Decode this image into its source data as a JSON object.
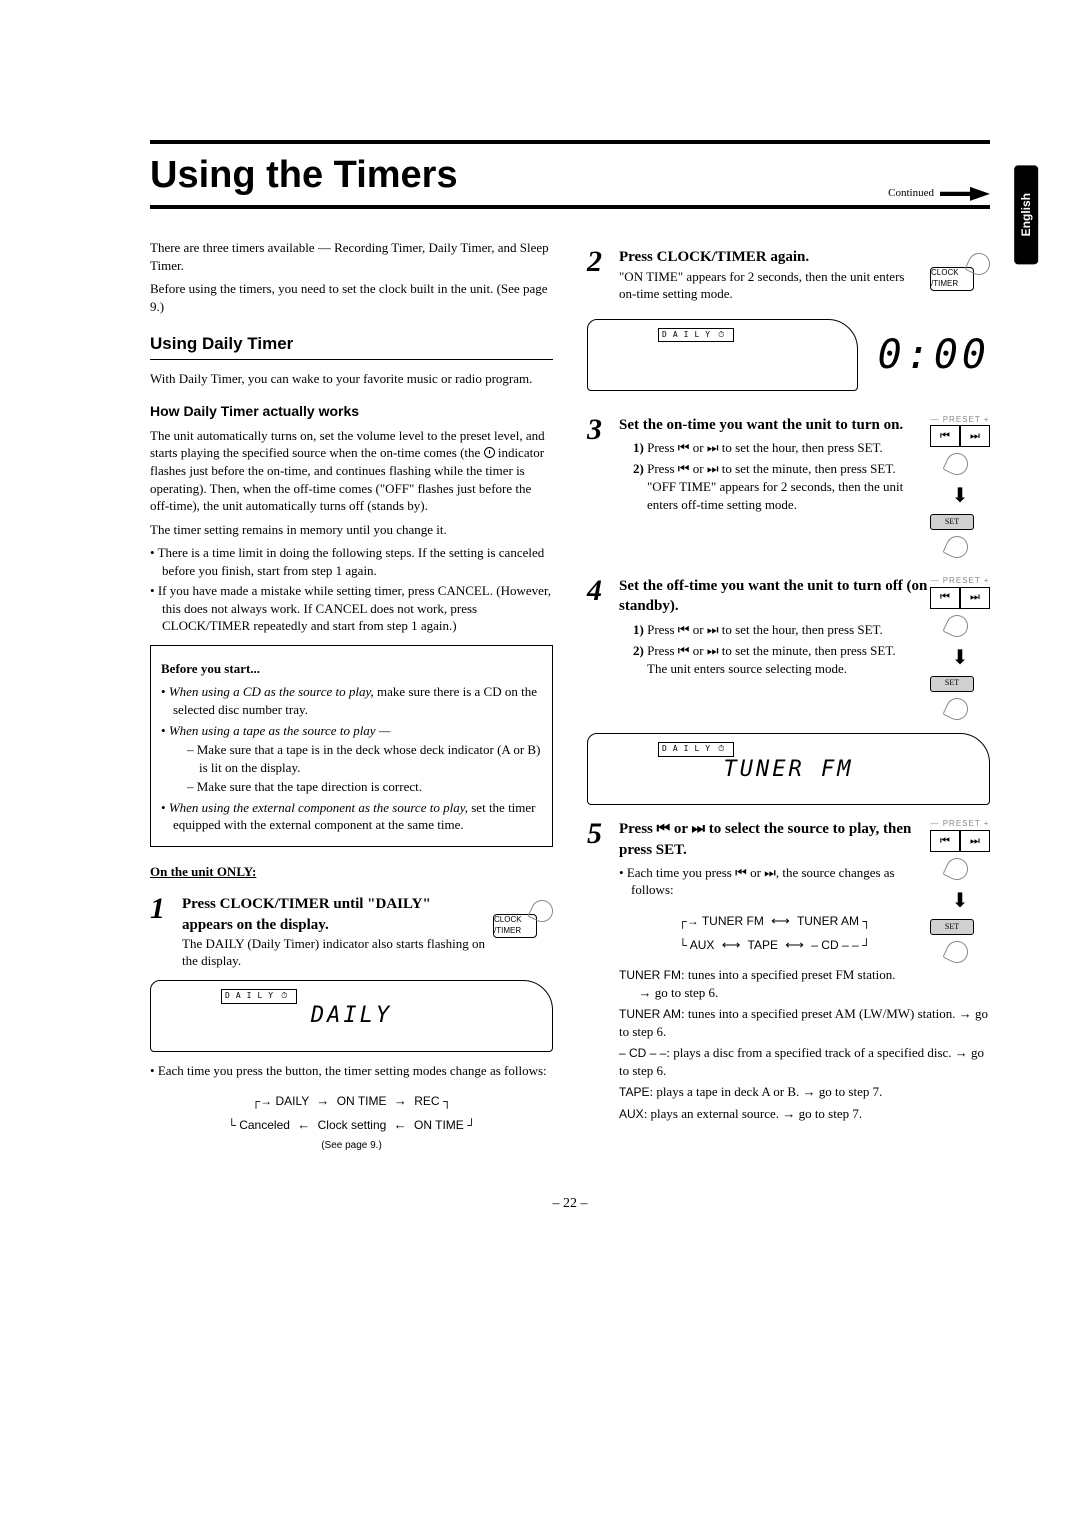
{
  "page": {
    "number": "– 22 –",
    "continued": "Continued",
    "language_tab": "English"
  },
  "title": "Using the Timers",
  "intro": {
    "p1": "There are three timers available — Recording Timer, Daily Timer, and Sleep Timer.",
    "p2": "Before using the timers, you need to set the clock built in the unit. (See page 9.)"
  },
  "daily": {
    "heading": "Using Daily Timer",
    "p1": "With Daily Timer, you can wake to your favorite music or radio program.",
    "how_head": "How Daily Timer actually works",
    "how_p1a": "The unit automatically turns on, set the volume level to the preset level, and starts playing the specified source when the on-time comes (the ",
    "how_p1b": " indicator flashes just before the on-time, and continues flashing while the timer is operating). Then, when the off-time comes (\"OFF\" flashes just before the off-time), the unit automatically turns off (stands by).",
    "how_p2": "The timer setting remains in memory until you change it.",
    "bullets": [
      "There is a time limit in doing the following steps. If the setting is canceled before you finish, start from step 1 again.",
      "If you have made a mistake while setting timer, press CANCEL. (However, this does not always work. If CANCEL does not work, press CLOCK/TIMER repeatedly and start from step 1 again.)"
    ],
    "box": {
      "head": "Before you start...",
      "cd_label": "When using a CD as the source to play,",
      "cd_text": " make sure there is a CD on the selected disc number tray.",
      "tape_label": "When using a tape as the source to play —",
      "tape_items": [
        "Make sure that a tape is in the deck whose deck indicator (A or B) is lit on the display.",
        "Make sure that the tape direction is correct."
      ],
      "ext_label": "When using the external component as the source to play,",
      "ext_text": " set the timer equipped with the external component at the same time."
    },
    "unit_only": "On the unit ONLY:"
  },
  "steps": {
    "s1": {
      "head": "Press CLOCK/TIMER until \"DAILY\" appears on the display.",
      "body": "The DAILY (Daily Timer) indicator also starts flashing on the display.",
      "display_text": "DAILY",
      "after": "Each time you press the button, the timer setting modes change as follows:",
      "flow_l1": [
        "DAILY",
        "ON TIME",
        "REC"
      ],
      "flow_l2": [
        "Canceled",
        "Clock setting",
        "ON TIME"
      ],
      "flow_note": "(See page 9.)"
    },
    "s2": {
      "head": "Press CLOCK/TIMER again.",
      "body": "\"ON TIME\" appears for 2 seconds, then the unit enters on-time setting mode.",
      "seg": "0:00"
    },
    "s3": {
      "head": "Set the on-time you want the unit to turn on.",
      "sub1a": "Press ",
      "sub1b": " to set the hour, then press SET.",
      "sub2a": "Press ",
      "sub2b": " to set the minute, then press SET.",
      "sub2c": "\"OFF TIME\" appears for 2 seconds, then the unit enters off-time setting mode."
    },
    "s4": {
      "head": "Set the off-time you want the unit to turn off (on standby).",
      "sub1a": "Press ",
      "sub1b": " to set the hour, then press SET.",
      "sub2a": "Press ",
      "sub2b": " to set the minute, then press SET.",
      "sub2c": "The unit enters source selecting mode.",
      "display_text": "TUNER   FM"
    },
    "s5": {
      "head_a": "Press ",
      "head_b": " to select the source to play, then press SET.",
      "body_a": "Each time you press ",
      "body_b": ", the source changes as follows:",
      "flow_l1": [
        "TUNER FM",
        "TUNER AM"
      ],
      "flow_l2": [
        "AUX",
        "TAPE",
        "– CD   – –"
      ],
      "sources": [
        {
          "src": "TUNER FM",
          "txt": ": tunes into a specified preset FM station.",
          "goto": "go to step 6."
        },
        {
          "src": "TUNER AM",
          "txt": ": tunes into a specified preset AM (LW/MW) station. ",
          "goto": "go to step 6."
        },
        {
          "src": "– CD   – –",
          "txt": ": plays a disc from a specified track of a specified disc. ",
          "goto": "go to step 6."
        },
        {
          "src": "TAPE",
          "txt": ": plays a tape in deck A or B. ",
          "goto": "go to step 7."
        },
        {
          "src": "AUX",
          "txt": ": plays an external source. ",
          "goto": "go to step 7."
        }
      ]
    }
  },
  "icons": {
    "clock_timer": "CLOCK /TIMER",
    "preset": "— PRESET +",
    "prev": "⏮",
    "next": "⏭",
    "set": "SET",
    "skip_glyph": "⏮ or ⏭",
    "daily_ind": "DAILY"
  },
  "colors": {
    "text": "#000000",
    "bg": "#ffffff",
    "grey": "#888888",
    "setfill": "#d0d0d0"
  }
}
